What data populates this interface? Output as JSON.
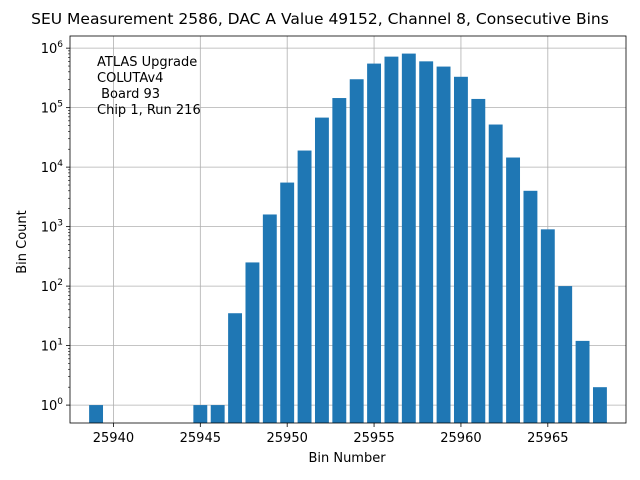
{
  "chart_data": {
    "type": "bar",
    "title": "SEU Measurement 2586, DAC A Value 49152, Channel 8, Consecutive Bins",
    "xlabel": "Bin Number",
    "ylabel": "Bin Count",
    "yscale": "log",
    "grid": true,
    "bar_color": "#1f77b4",
    "xlim": [
      25937.5,
      25969.5
    ],
    "ylim": [
      0.5,
      1600000
    ],
    "x_ticks": [
      25940,
      25945,
      25950,
      25955,
      25960,
      25965
    ],
    "x_tick_labels": [
      "25940",
      "25945",
      "25950",
      "25955",
      "25960",
      "25965"
    ],
    "y_ticks": [
      1,
      10,
      100,
      1000,
      10000,
      100000,
      1000000
    ],
    "y_tick_labels": [
      {
        "base": "10",
        "exp": "0"
      },
      {
        "base": "10",
        "exp": "1"
      },
      {
        "base": "10",
        "exp": "2"
      },
      {
        "base": "10",
        "exp": "3"
      },
      {
        "base": "10",
        "exp": "4"
      },
      {
        "base": "10",
        "exp": "5"
      },
      {
        "base": "10",
        "exp": "6"
      }
    ],
    "x": [
      25939,
      25945,
      25946,
      25947,
      25948,
      25949,
      25950,
      25951,
      25952,
      25953,
      25954,
      25955,
      25956,
      25957,
      25958,
      25959,
      25960,
      25961,
      25962,
      25963,
      25964,
      25965,
      25966,
      25967,
      25968
    ],
    "values": [
      1,
      1,
      1,
      35,
      250,
      1600,
      5500,
      19000,
      68000,
      145000,
      300000,
      550000,
      720000,
      810000,
      600000,
      490000,
      330000,
      140000,
      52000,
      14500,
      4000,
      900,
      100,
      12,
      2
    ],
    "annotation_lines": [
      "ATLAS Upgrade",
      "COLUTAv4",
      " Board 93",
      "Chip 1, Run 216"
    ]
  }
}
